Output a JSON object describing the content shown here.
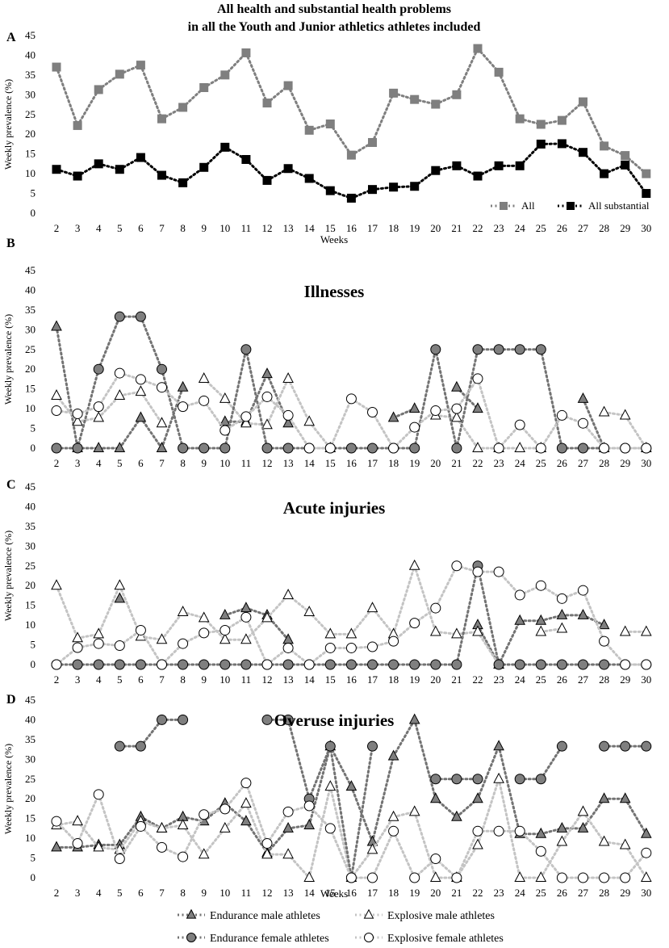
{
  "figure_title_line1": "All health and substantial health problems",
  "figure_title_line2": "in all the Youth and Junior athletics athletes included",
  "ylabel": "Weekly prevalence (%)",
  "xlabel": "Weeks",
  "colors": {
    "all": "#7f7f7f",
    "substantial": "#000000",
    "endurance_male": "#7f7f7f",
    "explosive_male": "#ffffff",
    "endurance_female": "#7f7f7f",
    "explosive_female": "#ffffff",
    "line_dark": "#737373",
    "line_light": "#c4c4c4"
  },
  "chart_data": [
    {
      "panel": "A",
      "type": "line",
      "title": "",
      "xlabel": "Weeks",
      "ylabel": "Weekly prevalence (%)",
      "ylim": [
        0,
        45
      ],
      "categories": [
        2,
        3,
        4,
        5,
        6,
        7,
        8,
        9,
        10,
        11,
        12,
        13,
        14,
        15,
        16,
        17,
        18,
        19,
        20,
        21,
        22,
        23,
        24,
        25,
        26,
        27,
        28,
        29,
        30
      ],
      "series": [
        {
          "name": "All",
          "marker": "square",
          "values": [
            37,
            22.2,
            31.3,
            35.2,
            37.5,
            23.9,
            26.8,
            31.8,
            35,
            40.6,
            27.9,
            32.3,
            21,
            22.6,
            14.7,
            17.9,
            30.4,
            28.8,
            27.6,
            30,
            41.7,
            35.7,
            23.9,
            22.5,
            23.5,
            28.2,
            17,
            14.6,
            10
          ]
        },
        {
          "name": "All substantial",
          "marker": "square",
          "values": [
            11.1,
            9.4,
            12.5,
            11.1,
            14.1,
            9.6,
            7.7,
            11.6,
            16.7,
            13.6,
            8.3,
            11.3,
            8.8,
            5.7,
            3.8,
            6,
            6.6,
            6.8,
            10.8,
            12,
            9.4,
            12,
            12,
            17.5,
            17.6,
            15.4,
            10,
            12.2,
            5
          ]
        }
      ],
      "legend": "bottom-right"
    },
    {
      "panel": "B",
      "type": "line",
      "title": "Illnesses",
      "xlabel": "",
      "ylabel": "Weekly prevalence (%)",
      "ylim": [
        0,
        45
      ],
      "categories": [
        2,
        3,
        4,
        5,
        6,
        7,
        8,
        9,
        10,
        11,
        12,
        13,
        14,
        15,
        16,
        17,
        18,
        19,
        20,
        21,
        22,
        23,
        24,
        25,
        26,
        27,
        28,
        29,
        30
      ],
      "series": [
        {
          "name": "Endurance male athletes",
          "marker": "triangle",
          "values": [
            30.8,
            0,
            0,
            0,
            7.7,
            0,
            15.4,
            null,
            6.7,
            6.7,
            18.8,
            6.3,
            null,
            null,
            null,
            null,
            7.7,
            10,
            null,
            15.4,
            10,
            null,
            null,
            null,
            null,
            12.5,
            0,
            null,
            null
          ]
        },
        {
          "name": "Explosive male athletes",
          "marker": "triangle",
          "values": [
            13.3,
            6.7,
            7.7,
            13.3,
            14.3,
            6.3,
            null,
            17.6,
            12.5,
            6.3,
            5.9,
            17.6,
            6.7,
            0,
            null,
            null,
            null,
            null,
            8.3,
            7.7,
            0,
            0,
            0,
            0,
            null,
            null,
            9.1,
            8.3,
            0
          ]
        },
        {
          "name": "Endurance female athletes",
          "marker": "circle",
          "values": [
            0,
            0,
            20,
            33.3,
            33.3,
            20,
            0,
            0,
            0,
            25,
            0,
            0,
            0,
            0,
            0,
            0,
            0,
            0,
            25,
            0,
            25,
            25,
            25,
            25,
            0,
            0,
            0,
            0,
            0
          ]
        },
        {
          "name": "Explosive female athletes",
          "marker": "circle",
          "values": [
            9.5,
            8.7,
            10.5,
            19,
            17.4,
            15.4,
            10.5,
            12,
            4.5,
            8,
            13,
            8.3,
            0,
            0,
            12.5,
            9.1,
            0,
            5.3,
            9.5,
            10,
            17.6,
            0,
            5.9,
            0,
            8.3,
            6.3,
            0,
            0,
            0
          ]
        }
      ]
    },
    {
      "panel": "C",
      "type": "line",
      "title": "Acute injuries",
      "xlabel": "",
      "ylabel": "Weekly prevalence (%)",
      "ylim": [
        0,
        45
      ],
      "categories": [
        2,
        3,
        4,
        5,
        6,
        7,
        8,
        9,
        10,
        11,
        12,
        13,
        14,
        15,
        16,
        17,
        18,
        19,
        20,
        21,
        22,
        23,
        24,
        25,
        26,
        27,
        28,
        29,
        30
      ],
      "series": [
        {
          "name": "Endurance male athletes",
          "marker": "triangle",
          "values": [
            null,
            null,
            null,
            16.7,
            null,
            null,
            null,
            null,
            12.5,
            14.3,
            12.5,
            6.3,
            null,
            null,
            null,
            null,
            null,
            null,
            null,
            null,
            10,
            0,
            11.1,
            11.1,
            12.5,
            12.5,
            10,
            null,
            null
          ]
        },
        {
          "name": "Explosive male athletes",
          "marker": "triangle",
          "values": [
            20,
            6.7,
            7.7,
            20,
            7.1,
            6.3,
            13.3,
            11.8,
            6.3,
            6.3,
            11.8,
            17.6,
            13.3,
            7.7,
            7.7,
            14.3,
            7.7,
            25,
            8.3,
            7.7,
            8.3,
            0,
            null,
            8.3,
            9.1,
            null,
            null,
            8.3,
            8.3
          ]
        },
        {
          "name": "Endurance female athletes",
          "marker": "circle",
          "values": [
            0,
            0,
            0,
            0,
            0,
            0,
            0,
            0,
            0,
            0,
            0,
            0,
            0,
            0,
            0,
            0,
            0,
            0,
            0,
            0,
            25,
            0,
            0,
            0,
            0,
            0,
            0,
            0,
            0
          ]
        },
        {
          "name": "Explosive female athletes",
          "marker": "circle",
          "values": [
            0,
            4.3,
            5.3,
            4.8,
            8.7,
            0,
            5.3,
            8,
            8.7,
            12,
            0,
            4.2,
            0,
            4.2,
            4.2,
            4.5,
            5.9,
            10.5,
            14.3,
            25,
            23.5,
            23.5,
            17.6,
            20,
            16.7,
            18.8,
            5.9,
            0,
            0
          ]
        }
      ]
    },
    {
      "panel": "D",
      "type": "line",
      "title": "Overuse injuries",
      "xlabel": "Weeks",
      "ylabel": "Weekly prevalence (%)",
      "ylim": [
        0,
        45
      ],
      "categories": [
        2,
        3,
        4,
        5,
        6,
        7,
        8,
        9,
        10,
        11,
        12,
        13,
        14,
        15,
        16,
        17,
        18,
        19,
        20,
        21,
        22,
        23,
        24,
        25,
        26,
        27,
        28,
        29,
        30
      ],
      "series": [
        {
          "name": "Endurance male athletes",
          "marker": "triangle",
          "values": [
            7.7,
            7.7,
            8.3,
            8.3,
            15.4,
            12.5,
            15.4,
            14.3,
            18.8,
            14.3,
            6.3,
            12.5,
            13.3,
            33.3,
            23.1,
            9.1,
            30.8,
            40,
            20,
            15.4,
            20,
            33.3,
            11.1,
            11.1,
            12.5,
            12.5,
            20,
            20,
            11.1
          ]
        },
        {
          "name": "Explosive male athletes",
          "marker": "triangle",
          "values": [
            13.3,
            14.3,
            7.7,
            7.1,
            14.3,
            12.5,
            13.3,
            5.9,
            12.5,
            18.8,
            5.9,
            5.9,
            0,
            23.1,
            0,
            7.1,
            15.4,
            16.7,
            0,
            0,
            8.3,
            25,
            0,
            0,
            9.1,
            16.7,
            9.1,
            8.3,
            0
          ]
        },
        {
          "name": "Endurance female athletes",
          "marker": "circle",
          "values": [
            null,
            null,
            null,
            33.3,
            33.3,
            40,
            40,
            null,
            null,
            null,
            40,
            40,
            20,
            33.3,
            0,
            33.3,
            null,
            null,
            25,
            25,
            25,
            null,
            25,
            25,
            33.3,
            null,
            33.3,
            33.3,
            33.3
          ]
        },
        {
          "name": "Explosive female athletes",
          "marker": "circle",
          "values": [
            14.3,
            8.7,
            21.1,
            4.8,
            13,
            7.7,
            5.3,
            16,
            17.4,
            24,
            8.7,
            16.7,
            18.2,
            12.5,
            0,
            0,
            11.8,
            0,
            4.8,
            0,
            11.8,
            11.8,
            11.8,
            6.7,
            0,
            0,
            0,
            0,
            6.3
          ]
        }
      ]
    }
  ]
}
